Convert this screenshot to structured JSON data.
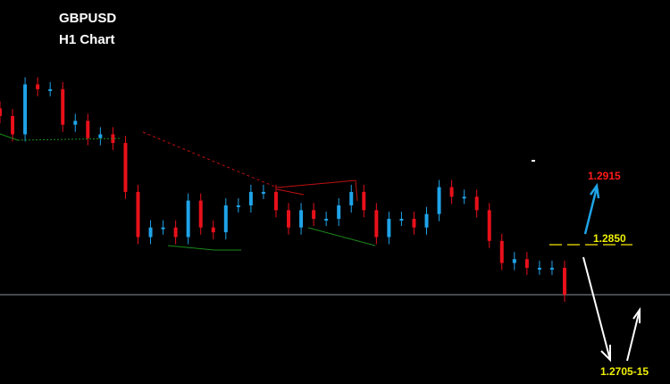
{
  "header": {
    "symbol": "GBPUSD",
    "timeframe": "H1 Chart"
  },
  "colors": {
    "bull": "#1fa3e8",
    "bear": "#e8101a",
    "background": "#000000",
    "target_up": "#ff1a1a",
    "pivot": "#f0f000",
    "target_down": "#f0f000"
  },
  "chart_data": {
    "type": "candlestick",
    "title": "GBPUSD H1 Chart",
    "closes": [
      1.2983,
      1.2964,
      1.3016,
      1.3011,
      1.3011,
      1.2974,
      1.2978,
      1.296,
      1.2964,
      1.2955,
      1.2904,
      1.2857,
      1.2867,
      1.2867,
      1.2857,
      1.2895,
      1.2867,
      1.2862,
      1.289,
      1.289,
      1.2904,
      1.2904,
      1.2885,
      1.2867,
      1.2885,
      1.2876,
      1.2876,
      1.289,
      1.2904,
      1.2885,
      1.2857,
      1.2876,
      1.2876,
      1.2867,
      1.2881,
      1.2909,
      1.2899,
      1.2899,
      1.2885,
      1.2853,
      1.283,
      1.2834,
      1.2825,
      1.2825,
      1.2825,
      1.2797
    ],
    "current_price_line": 1.2797,
    "annotations": {
      "pivot": {
        "label": "1.2850",
        "value": 1.285
      },
      "target_up": {
        "label": "1.2915",
        "value": 1.2915
      },
      "target_down": {
        "label": "1.2705-15",
        "value": 1.271
      }
    }
  }
}
